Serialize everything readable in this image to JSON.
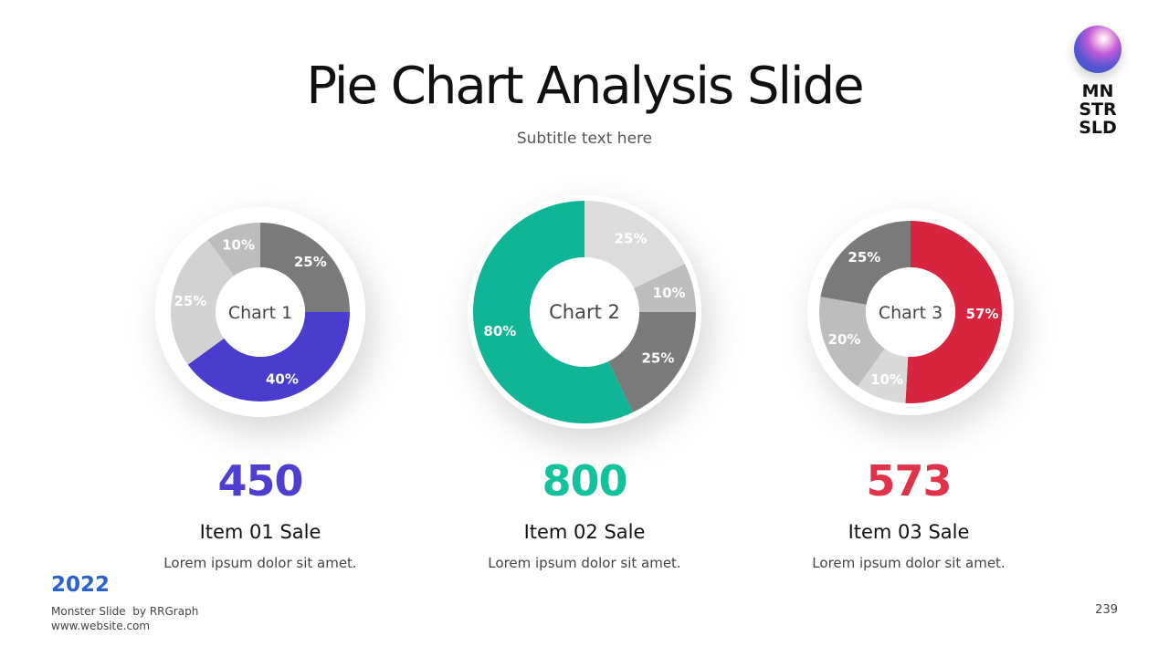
{
  "title": "Pie Chart Analysis Slide",
  "subtitle": "Subtitle text here",
  "logo": {
    "lines": [
      "MN",
      "STR",
      "SLD"
    ]
  },
  "chart_data": [
    {
      "type": "pie",
      "title": "Chart 1",
      "slices": [
        {
          "label": "25%",
          "value": 25,
          "color": "#7a7a7a"
        },
        {
          "label": "40%",
          "value": 40,
          "color": "#4a3ccc"
        },
        {
          "label": "25%",
          "value": 25,
          "color": "#d2d2d2"
        },
        {
          "label": "10%",
          "value": 10,
          "color": "#bdbdbd"
        }
      ]
    },
    {
      "type": "pie",
      "title": "Chart 2",
      "slices": [
        {
          "label": "25%",
          "value": 25,
          "color": "#dcdcdc"
        },
        {
          "label": "10%",
          "value": 10,
          "color": "#bdbdbd"
        },
        {
          "label": "25%",
          "value": 25,
          "color": "#7a7a7a"
        },
        {
          "label": "80%",
          "value": 80,
          "color": "#0fb596"
        }
      ]
    },
    {
      "type": "pie",
      "title": "Chart 3",
      "slices": [
        {
          "label": "57%",
          "value": 57,
          "color": "#d8253f"
        },
        {
          "label": "10%",
          "value": 10,
          "color": "#d9d9d9"
        },
        {
          "label": "20%",
          "value": 20,
          "color": "#bdbdbd"
        },
        {
          "label": "25%",
          "value": 25,
          "color": "#7a7a7a"
        }
      ]
    }
  ],
  "stats": [
    {
      "value": "450",
      "label": "Item 01 Sale",
      "desc": "Lorem ipsum dolor sit amet.",
      "color": "#4f3fd0"
    },
    {
      "value": "800",
      "label": "Item 02 Sale",
      "desc": "Lorem ipsum dolor sit amet.",
      "color": "#12c29a"
    },
    {
      "value": "573",
      "label": "Item 03 Sale",
      "desc": "Lorem ipsum dolor sit amet.",
      "color": "#e0334a"
    }
  ],
  "footer": {
    "year": "2022",
    "brand": "Monster Slide  by RRGraph",
    "website": "www.website.com",
    "page_number": "239"
  }
}
